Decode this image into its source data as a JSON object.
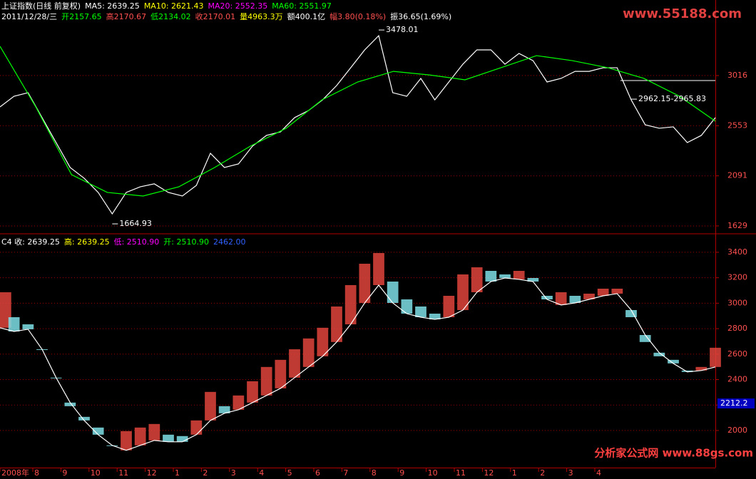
{
  "chart_data": [
    {
      "type": "line",
      "header_lines": [
        [
          {
            "text": "上证指数(日线 前复权)",
            "color": "#ffffff"
          },
          {
            "text": "MA5: 2639.25",
            "color": "#ffffff"
          },
          {
            "text": "MA10: 2621.43",
            "color": "#ffff00"
          },
          {
            "text": "MA20: 2552.35",
            "color": "#ff00ff"
          },
          {
            "text": "MA60: 2551.97",
            "color": "#00ff00"
          }
        ],
        [
          {
            "text": "2011/12/28/三",
            "color": "#ffffff"
          },
          {
            "text": "开2157.65",
            "color": "#00ff00"
          },
          {
            "text": "高2170.67",
            "color": "#ff5050"
          },
          {
            "text": "低2134.02",
            "color": "#00ff00"
          },
          {
            "text": "收2170.01",
            "color": "#ff5050"
          },
          {
            "text": "量4963.3万",
            "color": "#ffff00"
          },
          {
            "text": "额400.1亿",
            "color": "#ffffff"
          },
          {
            "text": "幅3.80(0.18%)",
            "color": "#ff5050"
          },
          {
            "text": "振36.65(1.69%)",
            "color": "#ffffff"
          }
        ]
      ],
      "annotations": [
        {
          "text": "1664.93",
          "index": 8
        },
        {
          "text": "3478.01",
          "index": 27
        },
        {
          "text": "2962.15-2965.83",
          "index": 45
        }
      ],
      "series": [
        {
          "color": "#ffffff",
          "values": [
            2727,
            2825,
            2858,
            2628,
            2398,
            2168,
            2069,
            1938,
            1740,
            1938,
            1990,
            2017,
            1938,
            1905,
            2003,
            2299,
            2168,
            2201,
            2365,
            2464,
            2497,
            2628,
            2694,
            2792,
            2924,
            3088,
            3253,
            3384,
            2858,
            2825,
            2990,
            2792,
            2957,
            3121,
            3253,
            3253,
            3121,
            3220,
            3154,
            2957,
            2990,
            3055,
            3055,
            3088,
            3088,
            2792,
            2562,
            2530,
            2543,
            2398,
            2464,
            2628
          ]
        },
        {
          "color": "#00ff00",
          "values": [
            3286,
            2727,
            2102,
            1938,
            1905,
            1990,
            2168,
            2365,
            2530,
            2792,
            2957,
            3055,
            3022,
            2977,
            3088,
            3200,
            3154,
            3088,
            2990,
            2825,
            2595
          ]
        }
      ],
      "ylim": [
        1576,
        3516
      ],
      "yticks": [
        1629,
        2091,
        2553,
        3016
      ],
      "grid": true,
      "watermark": "www.55188.com"
    },
    {
      "type": "range_bar",
      "header_lines": [
        [
          {
            "text": "C4 收: 2639.25",
            "color": "#ffffff"
          },
          {
            "text": "高: 2639.25",
            "color": "#ffff00"
          },
          {
            "text": "低: 2510.90",
            "color": "#ff00ff"
          },
          {
            "text": "开: 2510.90",
            "color": "#00ff00"
          },
          {
            "text": "2462.00",
            "color": "#3060ff"
          }
        ]
      ],
      "values": [
        3086,
        2890,
        2834,
        2638,
        2415,
        2191,
        2107,
        2023,
        1883,
        1995,
        2023,
        2051,
        1967,
        1956,
        2079,
        2303,
        2191,
        2275,
        2387,
        2499,
        2555,
        2638,
        2723,
        2807,
        2974,
        3142,
        3310,
        3394,
        3170,
        3030,
        2974,
        2918,
        3058,
        3226,
        3282,
        3254,
        3226,
        3254,
        3198,
        3058,
        3086,
        3058,
        3075,
        3114,
        3114,
        2890,
        2695,
        2583,
        2555,
        2471,
        2499,
        2650
      ],
      "base_values": [
        2807,
        2778,
        2795,
        2638,
        2415,
        2219,
        2079,
        1967,
        1883,
        1844,
        1883,
        1922,
        1911,
        1911,
        1967,
        2079,
        2135,
        2163,
        2219,
        2275,
        2331,
        2415,
        2499,
        2583,
        2695,
        2834,
        3002,
        3142,
        3002,
        2918,
        2890,
        2873,
        2890,
        2946,
        3086,
        3170,
        3198,
        3187,
        3170,
        3030,
        2986,
        3002,
        3030,
        3058,
        3075,
        2946,
        2750,
        2611,
        2527,
        2460,
        2471,
        2499
      ],
      "up_color": "#e0443c",
      "down_color": "#7fdfe8",
      "base_color": "#ffffff",
      "ylim": [
        1742,
        3450
      ],
      "yticks": [
        2000,
        2200,
        2400,
        2600,
        2800,
        3000,
        3200,
        3400
      ],
      "cursor_label": "2212.2",
      "cursor_value": 2212.2,
      "grid": true,
      "x_labels": [
        "2008年",
        "8",
        "9",
        "10",
        "11",
        "12",
        "1",
        "2",
        "3",
        "4",
        "5",
        "6",
        "7",
        "8",
        "9",
        "10",
        "11",
        "12",
        "1",
        "2",
        "3",
        "4"
      ],
      "watermark": "分析家公式网 www.88gs.com"
    }
  ]
}
